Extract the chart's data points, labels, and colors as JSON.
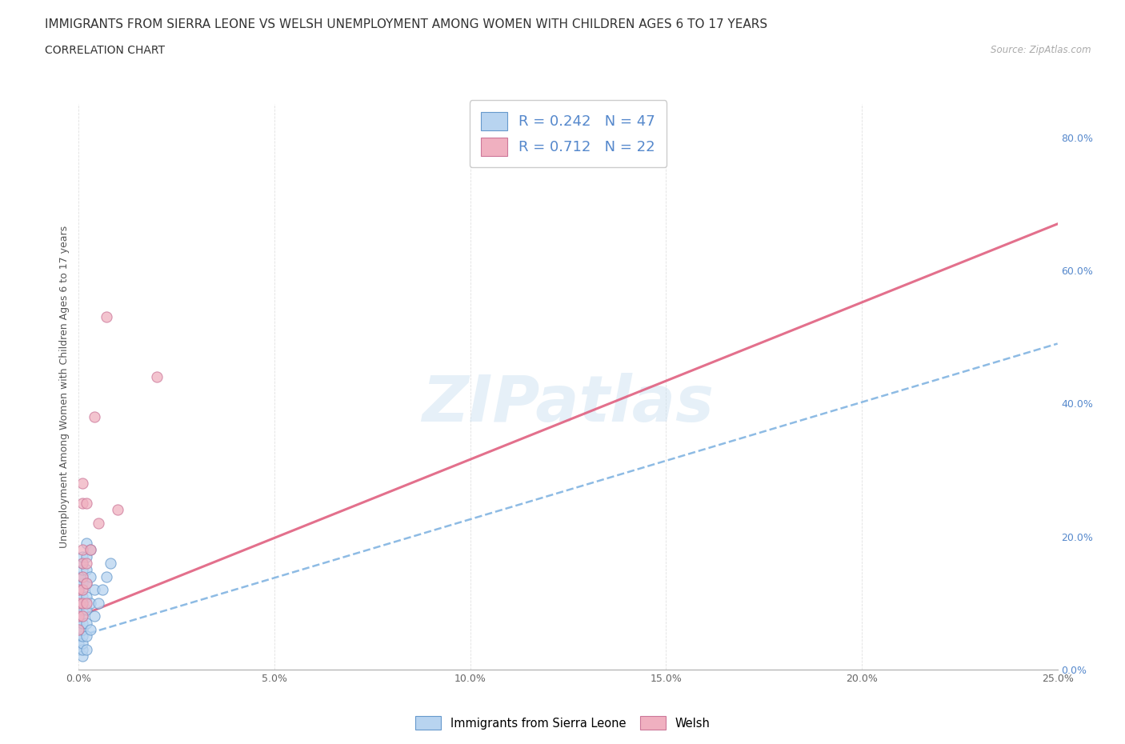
{
  "title": "IMMIGRANTS FROM SIERRA LEONE VS WELSH UNEMPLOYMENT AMONG WOMEN WITH CHILDREN AGES 6 TO 17 YEARS",
  "subtitle": "CORRELATION CHART",
  "source": "Source: ZipAtlas.com",
  "ylabel": "Unemployment Among Women with Children Ages 6 to 17 years",
  "xlim": [
    0.0,
    0.25
  ],
  "ylim": [
    0.0,
    0.85
  ],
  "xticks": [
    0.0,
    0.05,
    0.1,
    0.15,
    0.2,
    0.25
  ],
  "yticks_right": [
    0.0,
    0.2,
    0.4,
    0.6,
    0.8
  ],
  "blue_fill": "#b8d4f0",
  "blue_edge": "#6699cc",
  "blue_line": "#7ab0e0",
  "pink_fill": "#f0b0c0",
  "pink_edge": "#cc7799",
  "pink_line": "#e06080",
  "blue_scatter": [
    [
      0.0,
      0.03
    ],
    [
      0.0,
      0.04
    ],
    [
      0.0,
      0.05
    ],
    [
      0.0,
      0.06
    ],
    [
      0.0,
      0.07
    ],
    [
      0.0,
      0.08
    ],
    [
      0.0,
      0.09
    ],
    [
      0.0,
      0.1
    ],
    [
      0.0,
      0.11
    ],
    [
      0.0,
      0.12
    ],
    [
      0.0,
      0.13
    ],
    [
      0.0,
      0.14
    ],
    [
      0.001,
      0.02
    ],
    [
      0.001,
      0.03
    ],
    [
      0.001,
      0.04
    ],
    [
      0.001,
      0.05
    ],
    [
      0.001,
      0.06
    ],
    [
      0.001,
      0.07
    ],
    [
      0.001,
      0.08
    ],
    [
      0.001,
      0.09
    ],
    [
      0.001,
      0.1
    ],
    [
      0.001,
      0.11
    ],
    [
      0.001,
      0.12
    ],
    [
      0.001,
      0.13
    ],
    [
      0.001,
      0.14
    ],
    [
      0.001,
      0.15
    ],
    [
      0.001,
      0.16
    ],
    [
      0.001,
      0.17
    ],
    [
      0.002,
      0.03
    ],
    [
      0.002,
      0.05
    ],
    [
      0.002,
      0.07
    ],
    [
      0.002,
      0.09
    ],
    [
      0.002,
      0.11
    ],
    [
      0.002,
      0.13
    ],
    [
      0.002,
      0.15
    ],
    [
      0.002,
      0.17
    ],
    [
      0.002,
      0.19
    ],
    [
      0.003,
      0.06
    ],
    [
      0.003,
      0.1
    ],
    [
      0.003,
      0.14
    ],
    [
      0.003,
      0.18
    ],
    [
      0.004,
      0.08
    ],
    [
      0.004,
      0.12
    ],
    [
      0.005,
      0.1
    ],
    [
      0.006,
      0.12
    ],
    [
      0.007,
      0.14
    ],
    [
      0.008,
      0.16
    ]
  ],
  "pink_scatter": [
    [
      0.0,
      0.06
    ],
    [
      0.0,
      0.08
    ],
    [
      0.0,
      0.1
    ],
    [
      0.0,
      0.12
    ],
    [
      0.001,
      0.08
    ],
    [
      0.001,
      0.1
    ],
    [
      0.001,
      0.12
    ],
    [
      0.001,
      0.14
    ],
    [
      0.001,
      0.16
    ],
    [
      0.001,
      0.18
    ],
    [
      0.001,
      0.25
    ],
    [
      0.001,
      0.28
    ],
    [
      0.002,
      0.1
    ],
    [
      0.002,
      0.13
    ],
    [
      0.002,
      0.16
    ],
    [
      0.002,
      0.25
    ],
    [
      0.003,
      0.18
    ],
    [
      0.004,
      0.38
    ],
    [
      0.005,
      0.22
    ],
    [
      0.007,
      0.53
    ],
    [
      0.01,
      0.24
    ],
    [
      0.02,
      0.44
    ]
  ],
  "blue_R": 0.242,
  "blue_N": 47,
  "pink_R": 0.712,
  "pink_N": 22,
  "watermark": "ZIPatlas",
  "title_fontsize": 11,
  "subtitle_fontsize": 10,
  "axis_fontsize": 9,
  "blue_regline": [
    0.0,
    0.25,
    0.05,
    0.49
  ],
  "pink_regline": [
    0.0,
    0.25,
    0.08,
    0.67
  ]
}
